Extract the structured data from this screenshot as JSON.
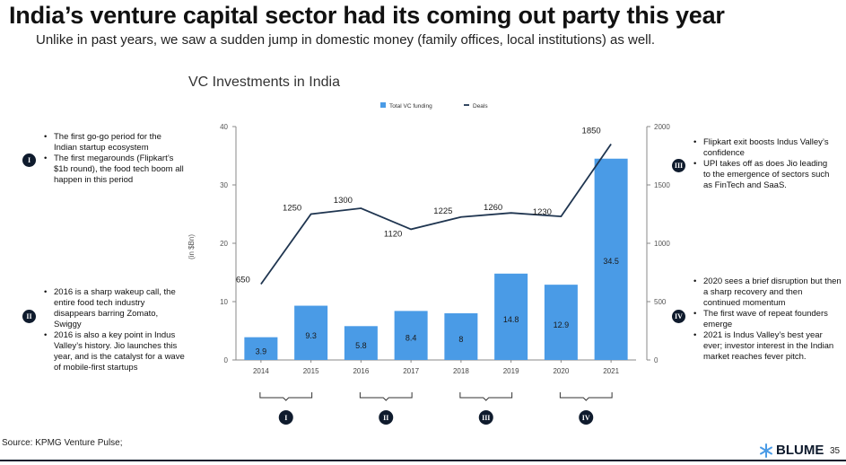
{
  "header": {
    "title": "India’s venture capital sector had its coming out party this year",
    "subtitle": "Unlike in past years, we saw a sudden jump in domestic money (family offices, local institutions) as well."
  },
  "chart_data": {
    "type": "bar+line",
    "title": "VC Investments in India",
    "categories": [
      "2014",
      "2015",
      "2016",
      "2017",
      "2018",
      "2019",
      "2020",
      "2021"
    ],
    "series": [
      {
        "name": "Total VC funding",
        "type": "bar",
        "axis": "left",
        "values": [
          3.9,
          9.3,
          5.8,
          8.4,
          8,
          14.8,
          12.9,
          34.5
        ],
        "labels": [
          "3.9",
          "9.3",
          "5.8",
          "8.4",
          "8",
          "14.8",
          "12.9",
          "34.5"
        ]
      },
      {
        "name": "Deals",
        "type": "line",
        "axis": "right",
        "values": [
          650,
          1250,
          1300,
          1120,
          1225,
          1260,
          1230,
          1850
        ],
        "labels": [
          "650",
          "1250",
          "1300",
          "1120",
          "1225",
          "1260",
          "1230",
          "1850"
        ]
      }
    ],
    "ylabel": "(in $Bn)",
    "ylim": [
      0,
      40
    ],
    "yticks": [
      "0",
      "10",
      "20",
      "30",
      "40"
    ],
    "y2lim": [
      0,
      2000
    ],
    "y2ticks": [
      "0",
      "500",
      "1000",
      "1500",
      "2000"
    ],
    "legend_position": "top-center",
    "grid": false,
    "colors": {
      "bar": "#4a9be6",
      "line": "#1f3550",
      "axis": "#888888"
    },
    "periods": [
      {
        "label": "I",
        "span": [
          "2014",
          "2015"
        ]
      },
      {
        "label": "II",
        "span": [
          "2016",
          "2017"
        ]
      },
      {
        "label": "III",
        "span": [
          "2018",
          "2019"
        ]
      },
      {
        "label": "IV",
        "span": [
          "2020",
          "2021"
        ]
      }
    ]
  },
  "notes": {
    "I": {
      "badge": "I",
      "items": [
        "The first go-go period for the Indian startup ecosystem",
        "The first megarounds (Flipkart’s $1b round), the food tech boom all happen in this period"
      ]
    },
    "II": {
      "badge": "II",
      "items": [
        "2016 is a sharp wakeup call, the entire food tech industry disappears barring Zomato, Swiggy",
        "2016 is also a key point in Indus Valley’s history. Jio launches this year, and is the catalyst for a wave of mobile-first startups"
      ]
    },
    "III": {
      "badge": "III",
      "items": [
        "Flipkart exit boosts Indus Valley’s confidence",
        "UPI takes off as does Jio leading to the emergence of sectors such as FinTech and SaaS."
      ]
    },
    "IV": {
      "badge": "IV",
      "items": [
        "2020 sees a brief disruption but then a sharp recovery and then continued momentum",
        "The first wave of repeat founders emerge",
        "2021 is Indus Valley’s best year ever; investor interest in the Indian market reaches fever pitch."
      ]
    }
  },
  "footer": {
    "source": "Source: KPMG Venture Pulse;",
    "brand": "BLUME",
    "page_number": "35",
    "colors": {
      "brand": "#0f1b2d",
      "accent": "#4a9be6"
    }
  }
}
